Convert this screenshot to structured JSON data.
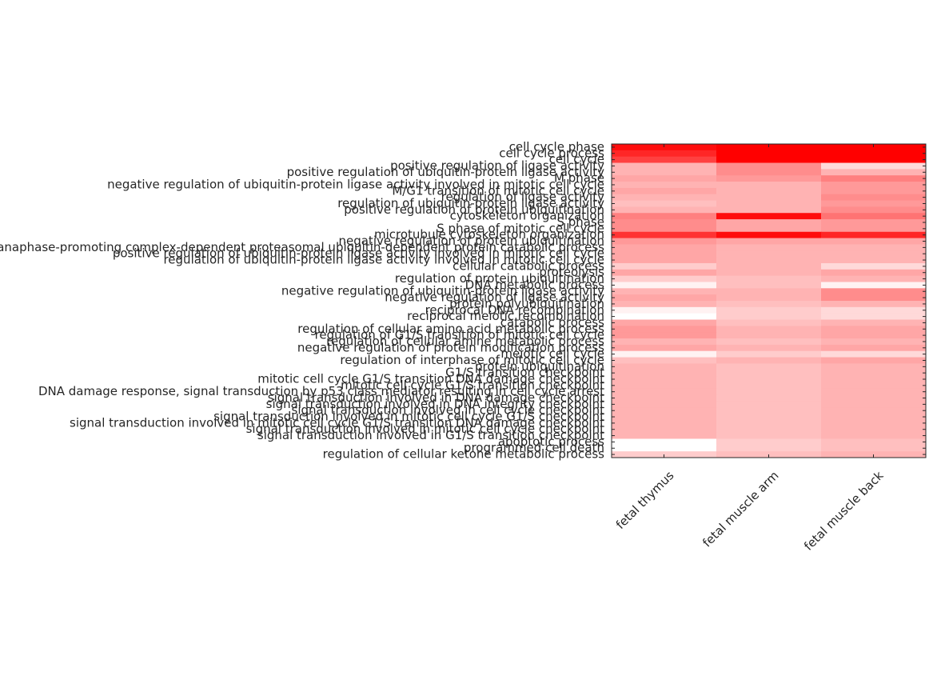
{
  "chart_data": {
    "type": "heatmap",
    "rows": [
      "cell cycle phase",
      "cell cycle process",
      "cell cycle",
      "positive regulation of ligase activity",
      "positive regulation of ubiquitin-protein ligase activity",
      "M phase",
      "negative regulation of ubiquitin-protein ligase activity involved in mitotic cell cycle",
      "M/G1 transition of mitotic cell cycle",
      "regulation of ligase activity",
      "regulation of ubiquitin-protein ligase activity",
      "positive regulation of protein ubiquitination",
      "cytoskeleton organization",
      "S phase",
      "S phase of mitotic cell cycle",
      "microtubule cytoskeleton organization",
      "negative regulation of protein ubiquitination",
      "anaphase-promoting complex-dependent proteasomal ubiquitin-dependent protein catabolic process",
      "positive regulation of ubiquitin-protein ligase activity involved in mitotic cell cycle",
      "regulation of ubiquitin-protein ligase activity involved in mitotic cell cycle",
      "cellular catabolic process",
      "proteolysis",
      "regulation of protein ubiquitination",
      "DNA metabolic process",
      "negative regulation of ubiquitin-protein ligase activity",
      "negative regulation of ligase activity",
      "protein polyubiquitination",
      "reciprocal DNA recombination",
      "reciprocal meiotic recombination",
      "catabolic process",
      "regulation of cellular amino acid metabolic process",
      "regulation of G1/S transition of mitotic cell cycle",
      "regulation of cellular amine metabolic process",
      "negative regulation of protein modification process",
      "meiotic cell cycle",
      "regulation of interphase of mitotic cell cycle",
      "protein ubiquitination",
      "G1/S transition checkpoint",
      "mitotic cell cycle G1/S transition DNA damage checkpoint",
      "mitotic cell cycle G1/S transition checkpoint",
      "DNA damage response, signal transduction by p53 class mediator resulting in cell cycle arrest",
      "signal transduction involved in DNA damage checkpoint",
      "signal transduction involved in DNA integrity checkpoint",
      "signal transduction involved in cell cycle checkpoint",
      "signal transduction involved in mitotic cell cycle G1/S checkpoint",
      "signal transduction involved in mitotic cell cycle G1/S transition DNA damage checkpoint",
      "signal transduction involved in mitotic cell cycle checkpoint",
      "signal transduction involved in G1/S transition checkpoint",
      "apoptotic process",
      "programmed cell death",
      "regulation of cellular ketone metabolic process"
    ],
    "columns": [
      "fetal thymus",
      "fetal muscle arm",
      "fetal muscle back"
    ],
    "values": [
      [
        0.95,
        1,
        1
      ],
      [
        0.85,
        1,
        1
      ],
      [
        0.75,
        1,
        1
      ],
      [
        0.3,
        0.45,
        0.15
      ],
      [
        0.3,
        0.45,
        0.3
      ],
      [
        0.35,
        0.4,
        0.5
      ],
      [
        0.3,
        0.3,
        0.4
      ],
      [
        0.35,
        0.3,
        0.4
      ],
      [
        0.3,
        0.3,
        0.45
      ],
      [
        0.25,
        0.3,
        0.4
      ],
      [
        0.3,
        0.3,
        0.45
      ],
      [
        0.5,
        0.95,
        0.55
      ],
      [
        0.45,
        0.35,
        0.4
      ],
      [
        0.45,
        0.35,
        0.4
      ],
      [
        0.8,
        0.95,
        0.85
      ],
      [
        0.4,
        0.35,
        0.35
      ],
      [
        0.35,
        0.3,
        0.3
      ],
      [
        0.35,
        0.3,
        0.3
      ],
      [
        0.35,
        0.3,
        0.3
      ],
      [
        0.2,
        0.3,
        0.15
      ],
      [
        0.35,
        0.3,
        0.35
      ],
      [
        0.2,
        0.25,
        0.3
      ],
      [
        0.05,
        0.25,
        0.05
      ],
      [
        0.3,
        0.3,
        0.45
      ],
      [
        0.35,
        0.3,
        0.45
      ],
      [
        0.3,
        0.25,
        0.3
      ],
      [
        0.05,
        0.2,
        0.15
      ],
      [
        0,
        0.2,
        0.15
      ],
      [
        0.35,
        0.25,
        0.3
      ],
      [
        0.4,
        0.3,
        0.35
      ],
      [
        0.4,
        0.3,
        0.35
      ],
      [
        0.3,
        0.25,
        0.3
      ],
      [
        0.35,
        0.3,
        0.35
      ],
      [
        0.05,
        0.2,
        0.15
      ],
      [
        0.25,
        0.3,
        0.35
      ],
      [
        0.3,
        0.25,
        0.3
      ],
      [
        0.3,
        0.25,
        0.3
      ],
      [
        0.3,
        0.25,
        0.3
      ],
      [
        0.3,
        0.25,
        0.3
      ],
      [
        0.3,
        0.25,
        0.3
      ],
      [
        0.3,
        0.25,
        0.3
      ],
      [
        0.3,
        0.25,
        0.3
      ],
      [
        0.3,
        0.25,
        0.3
      ],
      [
        0.3,
        0.25,
        0.3
      ],
      [
        0.3,
        0.25,
        0.3
      ],
      [
        0.3,
        0.25,
        0.3
      ],
      [
        0.3,
        0.25,
        0.3
      ],
      [
        0,
        0.2,
        0.25
      ],
      [
        0,
        0.2,
        0.25
      ],
      [
        0.2,
        0.25,
        0.3
      ]
    ],
    "zlim": [
      0,
      1
    ],
    "colormap": [
      "#ffffff",
      "#ff0000"
    ]
  }
}
